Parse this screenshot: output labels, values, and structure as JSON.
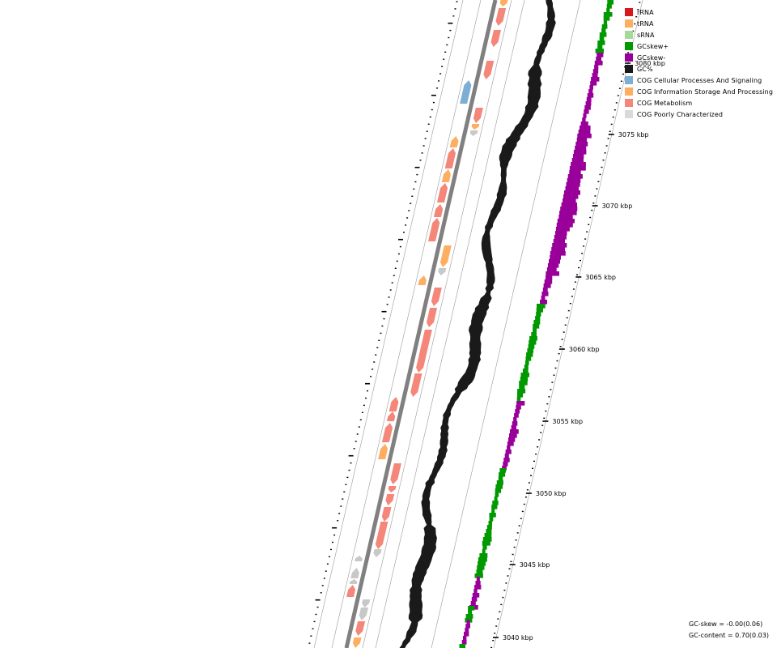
{
  "legend": {
    "items": [
      {
        "label": "rRNA",
        "color": "#d7191c"
      },
      {
        "label": "tRNA",
        "color": "#fdae61"
      },
      {
        "label": "sRNA",
        "color": "#a6d996"
      },
      {
        "label": "GCskew+",
        "color": "#009900"
      },
      {
        "label": "GCskew-",
        "color": "#990099"
      },
      {
        "label": "GC%",
        "color": "#1a1a1a"
      },
      {
        "label": "COG Cellular Processes And Signaling",
        "color": "#7daed4"
      },
      {
        "label": "COG Information Storage And Processing",
        "color": "#fdae61"
      },
      {
        "label": "COG Metabolism",
        "color": "#f4877a"
      },
      {
        "label": "COG Poorly Characterized",
        "color": "#d9d9d9"
      }
    ]
  },
  "scale": {
    "unit": "kbp",
    "labels": [
      "3080 kbp",
      "3075 kbp",
      "3070 kbp",
      "3065 kbp",
      "3060 kbp",
      "3055 kbp",
      "3050 kbp",
      "3045 kbp",
      "3040 kbp"
    ]
  },
  "stats": {
    "gc_skew": "GC-skew = -0.00(0.06)",
    "gc_content": "GC-content = 0.70(0.03)"
  },
  "colors": {
    "gc_content": "#1a1a1a",
    "skew_positive": "#009900",
    "skew_negative": "#990099",
    "backbone": "#808080",
    "guide": "#999999",
    "cog_metabolism": "#f4877a",
    "cog_information": "#fdae61",
    "cog_cellular": "#7daed4",
    "cog_poor": "#c8c8c8"
  }
}
